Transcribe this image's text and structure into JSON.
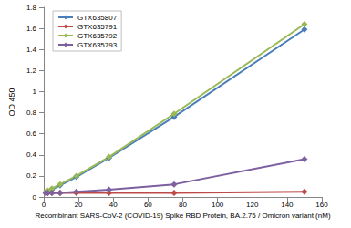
{
  "chart_data": {
    "type": "line",
    "x_label": "Recombinant SARS-CoV-2 (COVID-19) Spike RBD Protein, BA.2.75 / Omicron variant (nM)",
    "y_label": "OD 450",
    "xlim": [
      0,
      160
    ],
    "xticks": [
      0,
      20,
      40,
      60,
      80,
      100,
      120,
      140,
      160
    ],
    "ylim": [
      0,
      1.8
    ],
    "yticks": [
      0,
      0.2,
      0.4,
      0.6,
      0.8,
      1,
      1.2,
      1.4,
      1.6,
      1.8
    ],
    "grid": false,
    "legend": "upper left",
    "marker": "diamond",
    "x": [
      1.17,
      2.34,
      4.69,
      9.375,
      18.75,
      37.5,
      75,
      150
    ],
    "series": [
      {
        "name": "GTX635807",
        "color": "#4a7ebb",
        "values": [
          0.04,
          0.05,
          0.07,
          0.11,
          0.19,
          0.37,
          0.76,
          1.59
        ]
      },
      {
        "name": "GTX635791",
        "color": "#be4b48",
        "values": [
          0.04,
          0.04,
          0.04,
          0.04,
          0.04,
          0.04,
          0.04,
          0.05
        ]
      },
      {
        "name": "GTX635792",
        "color": "#98b954",
        "values": [
          0.05,
          0.06,
          0.08,
          0.12,
          0.2,
          0.38,
          0.79,
          1.64
        ]
      },
      {
        "name": "GTX635793",
        "color": "#7d60a0",
        "values": [
          0.04,
          0.04,
          0.04,
          0.04,
          0.05,
          0.07,
          0.12,
          0.36
        ]
      }
    ]
  }
}
